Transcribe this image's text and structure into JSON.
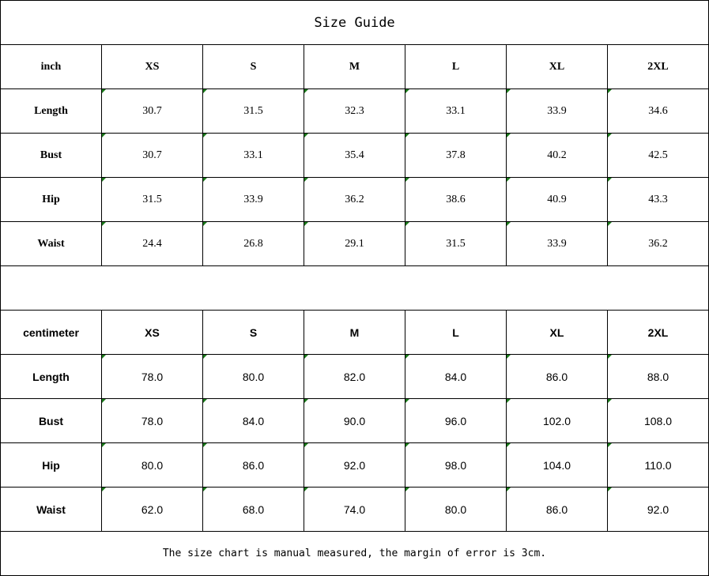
{
  "title": "Size Guide",
  "inch_table": {
    "unit": "inch",
    "sizes": [
      "XS",
      "S",
      "M",
      "L",
      "XL",
      "2XL"
    ],
    "rows": [
      {
        "label": "Length",
        "values": [
          "30.7",
          "31.5",
          "32.3",
          "33.1",
          "33.9",
          "34.6"
        ]
      },
      {
        "label": "Bust",
        "values": [
          "30.7",
          "33.1",
          "35.4",
          "37.8",
          "40.2",
          "42.5"
        ]
      },
      {
        "label": "Hip",
        "values": [
          "31.5",
          "33.9",
          "36.2",
          "38.6",
          "40.9",
          "43.3"
        ]
      },
      {
        "label": "Waist",
        "values": [
          "24.4",
          "26.8",
          "29.1",
          "31.5",
          "33.9",
          "36.2"
        ]
      }
    ]
  },
  "cm_table": {
    "unit": "centimeter",
    "sizes": [
      "XS",
      "S",
      "M",
      "L",
      "XL",
      "2XL"
    ],
    "rows": [
      {
        "label": "Length",
        "values": [
          "78.0",
          "80.0",
          "82.0",
          "84.0",
          "86.0",
          "88.0"
        ]
      },
      {
        "label": "Bust",
        "values": [
          "78.0",
          "84.0",
          "90.0",
          "96.0",
          "102.0",
          "108.0"
        ]
      },
      {
        "label": "Hip",
        "values": [
          "80.0",
          "86.0",
          "92.0",
          "98.0",
          "104.0",
          "110.0"
        ]
      },
      {
        "label": "Waist",
        "values": [
          "62.0",
          "68.0",
          "74.0",
          "80.0",
          "86.0",
          "92.0"
        ]
      }
    ]
  },
  "footer_note": "The size chart is manual measured, the margin of error is 3cm.",
  "colors": {
    "border": "#000000",
    "text_marker": "#1a7a1a"
  }
}
